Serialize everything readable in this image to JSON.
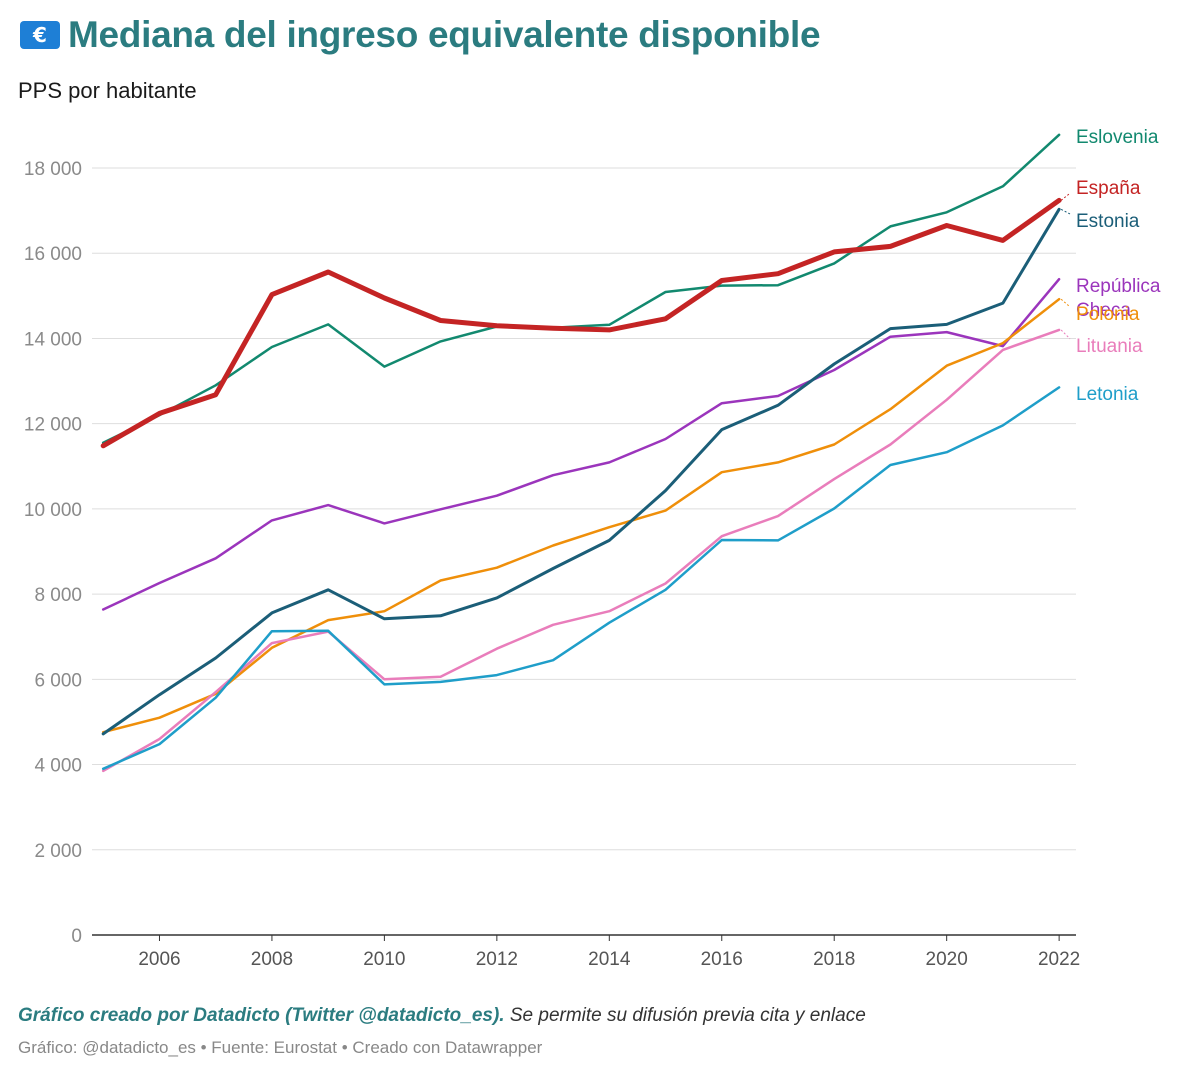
{
  "header": {
    "icon": "money-icon",
    "icon_symbol": "€",
    "title": "Mediana del ingreso equivalente disponible",
    "subtitle": "PPS por habitante"
  },
  "footer": {
    "credit_strong": "Gráfico creado por Datadicto (Twitter @datadicto_es).",
    "credit_rest": " Se permite su difusión previa cita y enlace",
    "meta": "Gráfico: @datadicto_es • Fuente: Eurostat • Creado con Datawrapper"
  },
  "chart_data": {
    "type": "line",
    "title": "Mediana del ingreso equivalente disponible",
    "subtitle": "PPS por habitante",
    "xlabel": "",
    "ylabel": "",
    "x": [
      2005,
      2006,
      2007,
      2008,
      2009,
      2010,
      2011,
      2012,
      2013,
      2014,
      2015,
      2016,
      2017,
      2018,
      2019,
      2020,
      2021,
      2022
    ],
    "xticks": [
      2006,
      2008,
      2010,
      2012,
      2014,
      2016,
      2018,
      2020,
      2022
    ],
    "xtick_labels": [
      "2006",
      "2008",
      "2010",
      "2012",
      "2014",
      "2016",
      "2018",
      "2020",
      "2022"
    ],
    "yticks": [
      0,
      2000,
      4000,
      6000,
      8000,
      10000,
      12000,
      14000,
      16000,
      18000
    ],
    "ytick_labels": [
      "0",
      "2 000",
      "4 000",
      "6 000",
      "8 000",
      "10 000",
      "12 000",
      "14 000",
      "16 000",
      "18 000"
    ],
    "xlim": [
      2004.8,
      2022.3
    ],
    "ylim": [
      0,
      18000
    ],
    "grid": "horizontal",
    "legend": "direct labels at right end",
    "series": [
      {
        "name": "Eslovenia",
        "color": "#12896f",
        "width": 2.5,
        "label_y": 18750,
        "values": [
          11550,
          12200,
          12900,
          13800,
          14330,
          13340,
          13930,
          14280,
          14250,
          14320,
          15090,
          15240,
          15250,
          15760,
          16630,
          16960,
          17570,
          18780
        ]
      },
      {
        "name": "España",
        "color": "#c42424",
        "width": 5,
        "label_y": 17550,
        "values": [
          11480,
          12240,
          12680,
          15030,
          15560,
          14950,
          14420,
          14300,
          14240,
          14200,
          14460,
          15360,
          15520,
          16030,
          16160,
          16650,
          16300,
          17240
        ]
      },
      {
        "name": "Estonia",
        "color": "#1b5e78",
        "width": 3,
        "label_y": 16780,
        "values": [
          4720,
          5640,
          6500,
          7560,
          8100,
          7420,
          7490,
          7910,
          8600,
          9260,
          10430,
          11860,
          12430,
          13400,
          14230,
          14330,
          14830,
          17030
        ]
      },
      {
        "name": "República Checa",
        "label_lines": [
          "República",
          "Checa"
        ],
        "color": "#9b35bc",
        "width": 2.5,
        "label_y": 15260,
        "values": [
          7640,
          8260,
          8840,
          9730,
          10090,
          9660,
          9990,
          10310,
          10790,
          11090,
          11640,
          12480,
          12650,
          13260,
          14040,
          14150,
          13820,
          15390
        ]
      },
      {
        "name": "Polonia",
        "color": "#ef8f0a",
        "width": 2.5,
        "label_y": 14600,
        "values": [
          4760,
          5100,
          5660,
          6740,
          7390,
          7600,
          8320,
          8620,
          9140,
          9570,
          9960,
          10860,
          11090,
          11510,
          12340,
          13360,
          13890,
          14920
        ]
      },
      {
        "name": "Lituania",
        "color": "#e97dbb",
        "width": 2.5,
        "label_y": 13850,
        "values": [
          3850,
          4600,
          5700,
          6850,
          7120,
          6000,
          6060,
          6720,
          7280,
          7600,
          8250,
          9360,
          9830,
          10700,
          11510,
          12560,
          13730,
          14200
        ]
      },
      {
        "name": "Letonia",
        "color": "#1f9ec9",
        "width": 2.5,
        "label_y": 12720,
        "values": [
          3900,
          4480,
          5570,
          7130,
          7140,
          5880,
          5940,
          6100,
          6450,
          7330,
          8100,
          9270,
          9260,
          10010,
          11030,
          11330,
          11960,
          12850
        ]
      }
    ]
  }
}
